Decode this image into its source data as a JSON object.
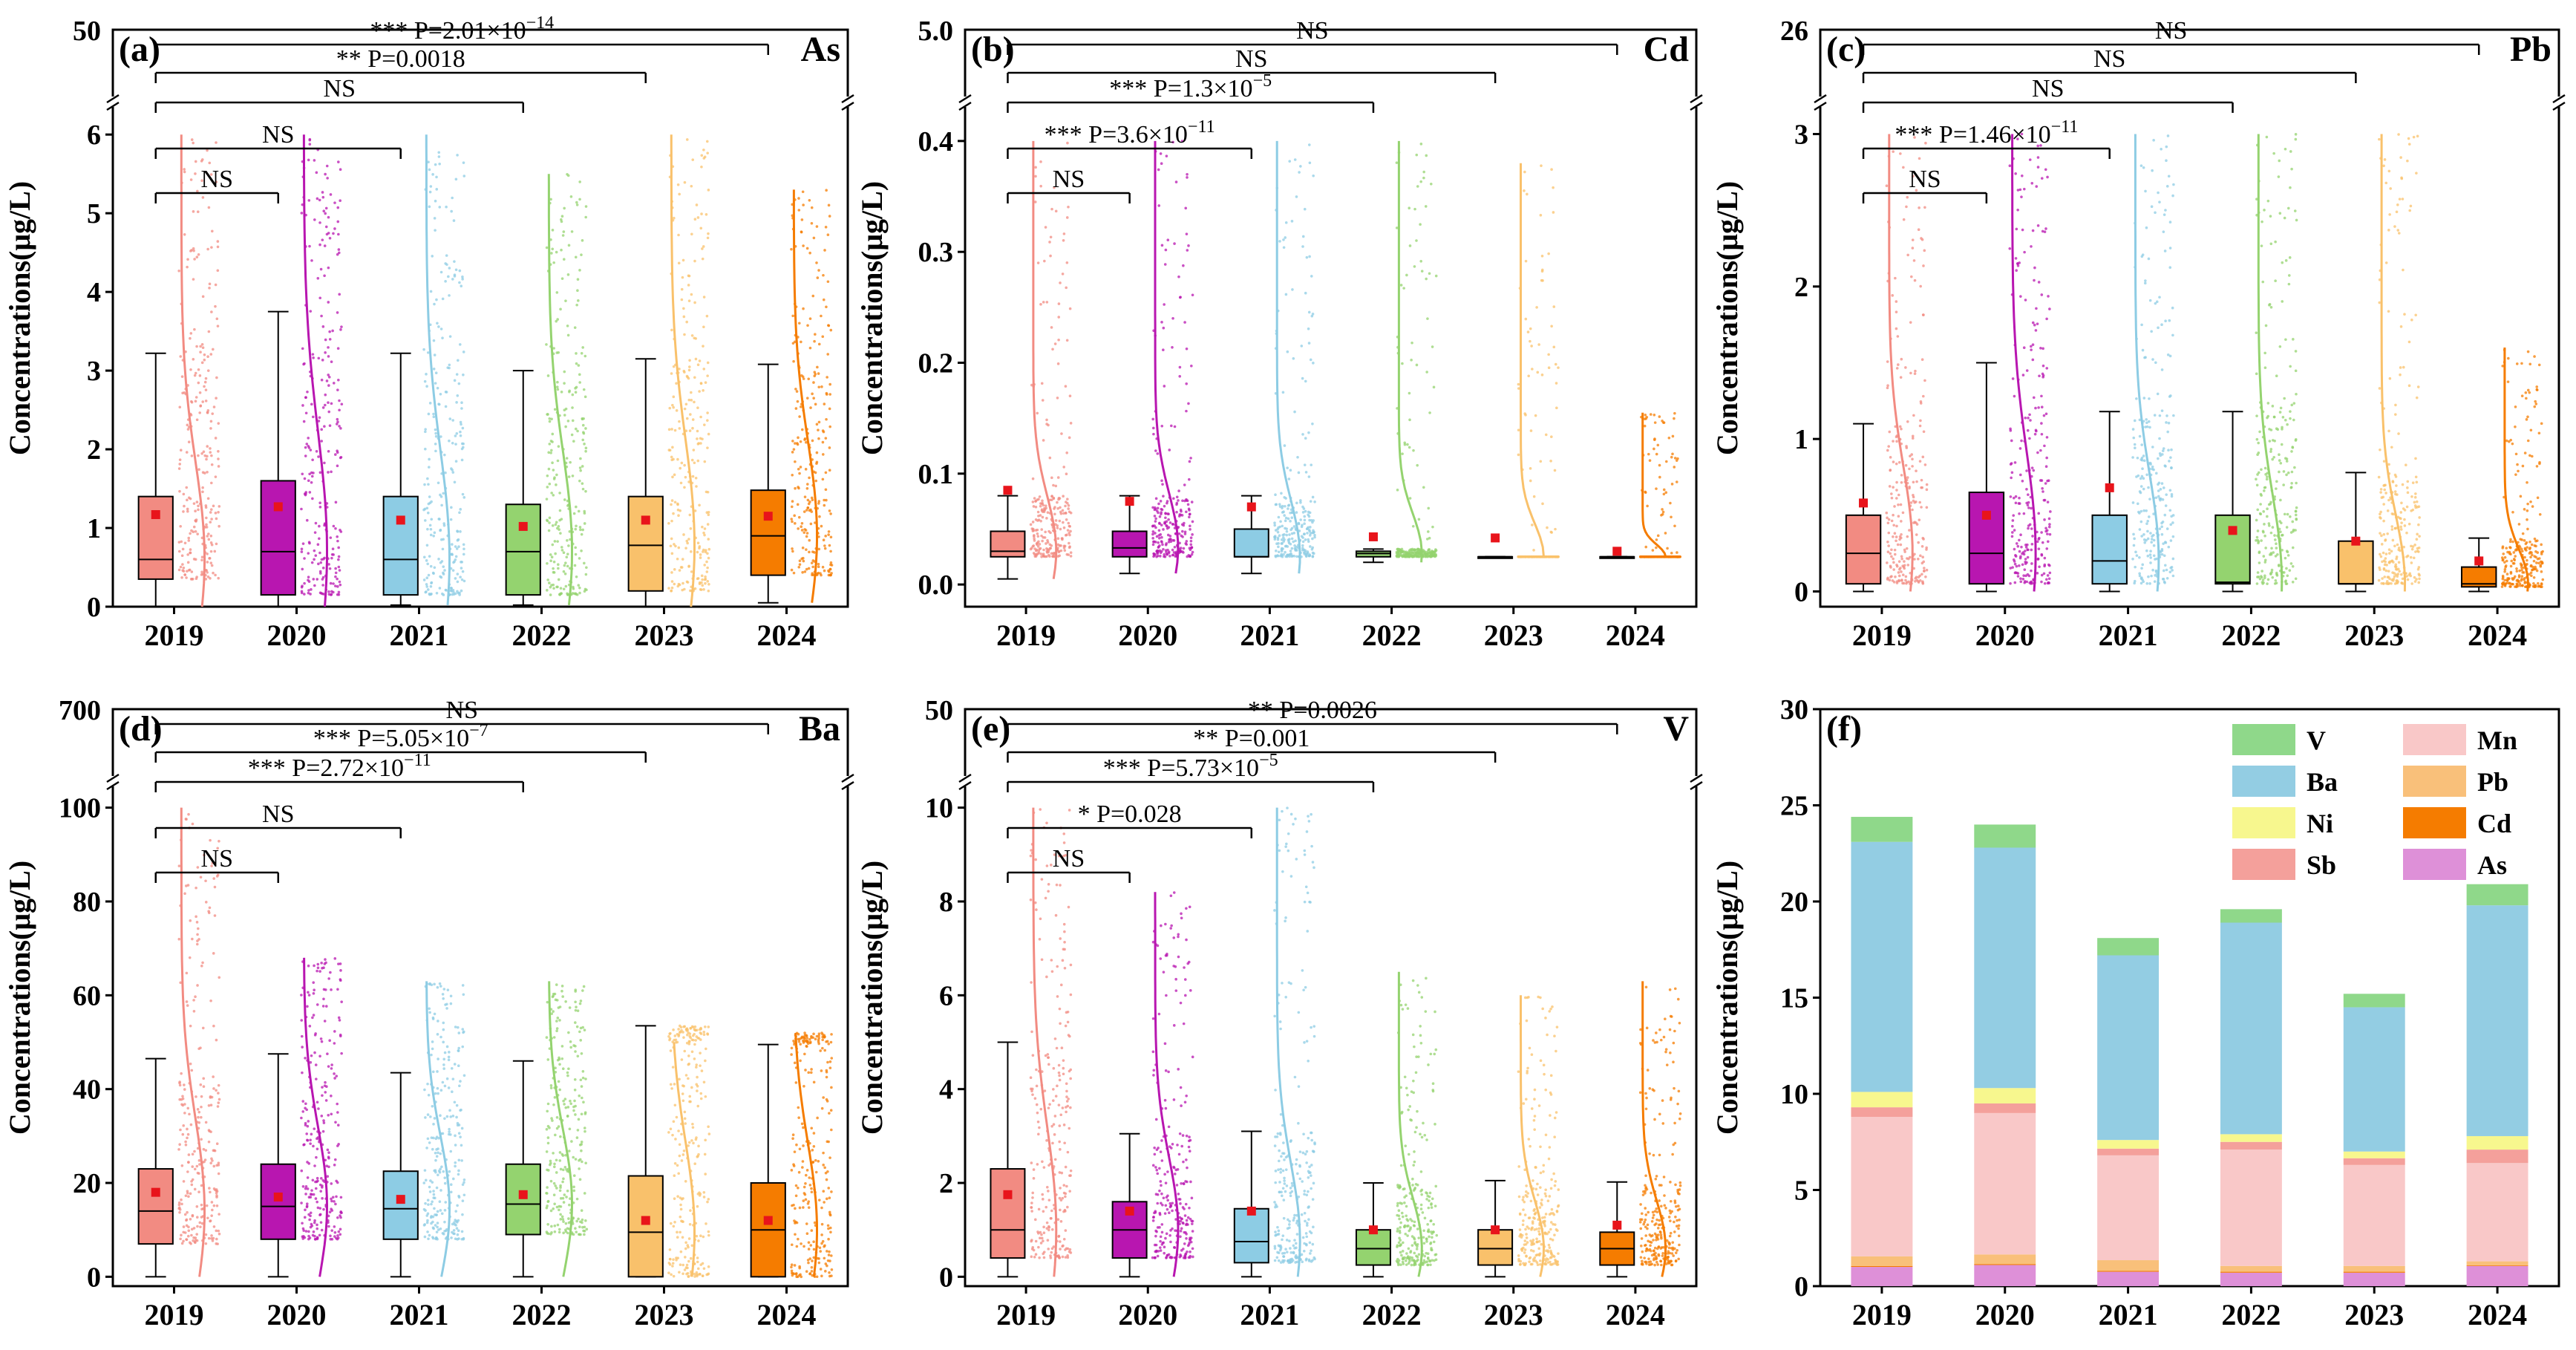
{
  "chart_data": [
    {
      "id": "a",
      "type": "box",
      "panel_label": "(a)",
      "element": "As",
      "ylabel": "Concentrations(μg/L)",
      "categories": [
        "2019",
        "2020",
        "2021",
        "2022",
        "2023",
        "2024"
      ],
      "colors": [
        "#F28B82",
        "#B816B0",
        "#8DCCE4",
        "#94D36F",
        "#F9C16B",
        "#F57C00"
      ],
      "ylim": [
        0,
        6.2
      ],
      "y_ticks": [
        0,
        1,
        2,
        3,
        4,
        5,
        6
      ],
      "y_top_label": "50",
      "boxes": [
        {
          "q1": 0.35,
          "median": 0.6,
          "q3": 1.4,
          "mean": 1.17,
          "wl": 0.0,
          "wh": 3.22,
          "tail": 6.0
        },
        {
          "q1": 0.15,
          "median": 0.7,
          "q3": 1.6,
          "mean": 1.27,
          "wl": 0.0,
          "wh": 3.75,
          "tail": 6.0
        },
        {
          "q1": 0.15,
          "median": 0.6,
          "q3": 1.4,
          "mean": 1.1,
          "wl": 0.02,
          "wh": 3.22,
          "tail": 6.0
        },
        {
          "q1": 0.15,
          "median": 0.7,
          "q3": 1.3,
          "mean": 1.02,
          "wl": 0.02,
          "wh": 3.0,
          "tail": 5.5
        },
        {
          "q1": 0.2,
          "median": 0.78,
          "q3": 1.4,
          "mean": 1.1,
          "wl": 0.0,
          "wh": 3.15,
          "tail": 6.0
        },
        {
          "q1": 0.4,
          "median": 0.9,
          "q3": 1.48,
          "mean": 1.15,
          "wl": 0.05,
          "wh": 3.08,
          "tail": 5.3
        }
      ],
      "comparisons": [
        {
          "to": "2024",
          "label": "*** P=2.01×10",
          "exp": "−14"
        },
        {
          "to": "2023",
          "label": "** P=0.0018",
          "exp": ""
        },
        {
          "to": "2022",
          "label": "NS",
          "exp": ""
        },
        {
          "to": "2021",
          "label": "NS",
          "exp": ""
        },
        {
          "to": "2020",
          "label": "NS",
          "exp": ""
        }
      ]
    },
    {
      "id": "b",
      "type": "box",
      "panel_label": "(b)",
      "element": "Cd",
      "ylabel": "Concentrations(μg/L)",
      "categories": [
        "2019",
        "2020",
        "2021",
        "2022",
        "2023",
        "2024"
      ],
      "colors": [
        "#F28B82",
        "#B816B0",
        "#8DCCE4",
        "#94D36F",
        "#F9C16B",
        "#F57C00"
      ],
      "ylim": [
        -0.02,
        0.42
      ],
      "y_ticks": [
        0.0,
        0.1,
        0.2,
        0.3,
        0.4
      ],
      "y_top_label": "5.0",
      "boxes": [
        {
          "q1": 0.025,
          "median": 0.03,
          "q3": 0.048,
          "mean": 0.085,
          "wl": 0.005,
          "wh": 0.08,
          "tail": 0.4
        },
        {
          "q1": 0.025,
          "median": 0.033,
          "q3": 0.048,
          "mean": 0.075,
          "wl": 0.01,
          "wh": 0.08,
          "tail": 0.4
        },
        {
          "q1": 0.025,
          "median": 0.025,
          "q3": 0.05,
          "mean": 0.07,
          "wl": 0.01,
          "wh": 0.08,
          "tail": 0.4
        },
        {
          "q1": 0.025,
          "median": 0.028,
          "q3": 0.03,
          "mean": 0.043,
          "wl": 0.02,
          "wh": 0.032,
          "tail": 0.4
        },
        {
          "q1": 0.025,
          "median": 0.025,
          "q3": 0.025,
          "mean": 0.042,
          "wl": 0.025,
          "wh": 0.025,
          "tail": 0.38
        },
        {
          "q1": 0.025,
          "median": 0.025,
          "q3": 0.025,
          "mean": 0.03,
          "wl": 0.025,
          "wh": 0.025,
          "tail": 0.155
        }
      ],
      "comparisons": [
        {
          "to": "2024",
          "label": "NS",
          "exp": ""
        },
        {
          "to": "2023",
          "label": "NS",
          "exp": ""
        },
        {
          "to": "2022",
          "label": "*** P=1.3×10",
          "exp": "−5"
        },
        {
          "to": "2021",
          "label": "*** P=3.6×10",
          "exp": "−11"
        },
        {
          "to": "2020",
          "label": "NS",
          "exp": ""
        }
      ]
    },
    {
      "id": "c",
      "type": "box",
      "panel_label": "(c)",
      "element": "Pb",
      "ylabel": "Concentrations(μg/L)",
      "categories": [
        "2019",
        "2020",
        "2021",
        "2022",
        "2023",
        "2024"
      ],
      "colors": [
        "#F28B82",
        "#B816B0",
        "#8DCCE4",
        "#94D36F",
        "#F9C16B",
        "#F57C00"
      ],
      "ylim": [
        -0.1,
        3.1
      ],
      "y_ticks": [
        0,
        1,
        2,
        3
      ],
      "y_top_label": "26",
      "boxes": [
        {
          "q1": 0.05,
          "median": 0.25,
          "q3": 0.5,
          "mean": 0.58,
          "wl": 0.0,
          "wh": 1.1,
          "tail": 3.0
        },
        {
          "q1": 0.05,
          "median": 0.25,
          "q3": 0.65,
          "mean": 0.5,
          "wl": 0.0,
          "wh": 1.5,
          "tail": 3.0
        },
        {
          "q1": 0.05,
          "median": 0.2,
          "q3": 0.5,
          "mean": 0.68,
          "wl": 0.0,
          "wh": 1.18,
          "tail": 3.0
        },
        {
          "q1": 0.05,
          "median": 0.06,
          "q3": 0.5,
          "mean": 0.4,
          "wl": 0.0,
          "wh": 1.18,
          "tail": 3.0
        },
        {
          "q1": 0.05,
          "median": 0.05,
          "q3": 0.33,
          "mean": 0.33,
          "wl": 0.0,
          "wh": 0.78,
          "tail": 3.0
        },
        {
          "q1": 0.03,
          "median": 0.05,
          "q3": 0.16,
          "mean": 0.2,
          "wl": 0.0,
          "wh": 0.35,
          "tail": 1.6
        }
      ],
      "comparisons": [
        {
          "to": "2024",
          "label": "NS",
          "exp": ""
        },
        {
          "to": "2023",
          "label": "NS",
          "exp": ""
        },
        {
          "to": "2022",
          "label": "NS",
          "exp": ""
        },
        {
          "to": "2021",
          "label": "*** P=1.46×10",
          "exp": "−11"
        },
        {
          "to": "2020",
          "label": "NS",
          "exp": ""
        }
      ]
    },
    {
      "id": "d",
      "type": "box",
      "panel_label": "(d)",
      "element": "Ba",
      "ylabel": "Concentrations(μg/L)",
      "categories": [
        "2019",
        "2020",
        "2021",
        "2022",
        "2023",
        "2024"
      ],
      "colors": [
        "#F28B82",
        "#B816B0",
        "#8DCCE4",
        "#94D36F",
        "#F9C16B",
        "#F57C00"
      ],
      "ylim": [
        -2,
        102
      ],
      "y_ticks": [
        0,
        20,
        40,
        60,
        80,
        100
      ],
      "y_top_label": "700",
      "boxes": [
        {
          "q1": 7,
          "median": 14,
          "q3": 23,
          "mean": 18,
          "wl": 0,
          "wh": 46.5,
          "tail": 100
        },
        {
          "q1": 8,
          "median": 15,
          "q3": 24,
          "mean": 17,
          "wl": 0,
          "wh": 47.5,
          "tail": 68
        },
        {
          "q1": 8,
          "median": 14.5,
          "q3": 22.5,
          "mean": 16.5,
          "wl": 0,
          "wh": 43.5,
          "tail": 63
        },
        {
          "q1": 9,
          "median": 15.5,
          "q3": 24,
          "mean": 17.5,
          "wl": 0,
          "wh": 46,
          "tail": 63
        },
        {
          "q1": 0,
          "median": 9.5,
          "q3": 21.5,
          "mean": 12,
          "wl": 0,
          "wh": 53.5,
          "tail": 50
        },
        {
          "q1": 0,
          "median": 10,
          "q3": 20,
          "mean": 12,
          "wl": 0,
          "wh": 49.5,
          "tail": 52
        }
      ],
      "comparisons": [
        {
          "to": "2024",
          "label": "NS",
          "exp": ""
        },
        {
          "to": "2023",
          "label": "*** P=5.05×10",
          "exp": "−7"
        },
        {
          "to": "2022",
          "label": "*** P=2.72×10",
          "exp": "−11"
        },
        {
          "to": "2021",
          "label": "NS",
          "exp": ""
        },
        {
          "to": "2020",
          "label": "NS",
          "exp": ""
        }
      ]
    },
    {
      "id": "e",
      "type": "box",
      "panel_label": "(e)",
      "element": "V",
      "ylabel": "Concentrations(μg/L)",
      "categories": [
        "2019",
        "2020",
        "2021",
        "2022",
        "2023",
        "2024"
      ],
      "colors": [
        "#F28B82",
        "#B816B0",
        "#8DCCE4",
        "#94D36F",
        "#F9C16B",
        "#F57C00"
      ],
      "ylim": [
        -0.2,
        10.2
      ],
      "y_ticks": [
        0,
        2,
        4,
        6,
        8,
        10
      ],
      "y_top_label": "50",
      "boxes": [
        {
          "q1": 0.4,
          "median": 1.0,
          "q3": 2.3,
          "mean": 1.75,
          "wl": 0.0,
          "wh": 5.0,
          "tail": 10.0
        },
        {
          "q1": 0.4,
          "median": 1.0,
          "q3": 1.6,
          "mean": 1.4,
          "wl": 0.0,
          "wh": 3.05,
          "tail": 8.2
        },
        {
          "q1": 0.3,
          "median": 0.75,
          "q3": 1.45,
          "mean": 1.4,
          "wl": 0.0,
          "wh": 3.1,
          "tail": 10.0
        },
        {
          "q1": 0.25,
          "median": 0.6,
          "q3": 1.0,
          "mean": 1.0,
          "wl": 0.0,
          "wh": 2.0,
          "tail": 6.5
        },
        {
          "q1": 0.25,
          "median": 0.6,
          "q3": 1.0,
          "mean": 1.0,
          "wl": 0.0,
          "wh": 2.05,
          "tail": 6.0
        },
        {
          "q1": 0.25,
          "median": 0.6,
          "q3": 0.95,
          "mean": 1.1,
          "wl": 0.0,
          "wh": 2.02,
          "tail": 6.3
        }
      ],
      "comparisons": [
        {
          "to": "2024",
          "label": "** P=0.0026",
          "exp": ""
        },
        {
          "to": "2023",
          "label": "** P=0.001",
          "exp": ""
        },
        {
          "to": "2022",
          "label": "*** P=5.73×10",
          "exp": "−5"
        },
        {
          "to": "2021",
          "label": "* P=0.028",
          "exp": ""
        },
        {
          "to": "2020",
          "label": "NS",
          "exp": ""
        }
      ]
    },
    {
      "id": "f",
      "type": "stacked-bar",
      "panel_label": "(f)",
      "ylabel": "Concentrations(μg/L)",
      "categories": [
        "2019",
        "2020",
        "2021",
        "2022",
        "2023",
        "2024"
      ],
      "ylim": [
        0,
        30
      ],
      "y_ticks": [
        0,
        5,
        10,
        15,
        20,
        25,
        30
      ],
      "legend": [
        {
          "name": "V",
          "color": "#8FD88A"
        },
        {
          "name": "Mn",
          "color": "#F9C8C8"
        },
        {
          "name": "Ba",
          "color": "#93CDE3"
        },
        {
          "name": "Pb",
          "color": "#F9C07A"
        },
        {
          "name": "Ni",
          "color": "#F7F78E"
        },
        {
          "name": "Cd",
          "color": "#F57C00"
        },
        {
          "name": "Sb",
          "color": "#F4A09B"
        },
        {
          "name": "As",
          "color": "#DE90D8"
        }
      ],
      "series": [
        {
          "name": "As",
          "color": "#DE90D8",
          "values": [
            1.0,
            1.1,
            0.75,
            0.7,
            0.7,
            1.05
          ]
        },
        {
          "name": "Cd",
          "color": "#F57C00",
          "values": [
            0.05,
            0.05,
            0.05,
            0.05,
            0.05,
            0.04
          ]
        },
        {
          "name": "Pb",
          "color": "#F9C07A",
          "values": [
            0.5,
            0.5,
            0.55,
            0.3,
            0.3,
            0.2
          ]
        },
        {
          "name": "Mn",
          "color": "#F9C8C8",
          "values": [
            7.25,
            7.35,
            5.45,
            6.05,
            5.25,
            5.11
          ]
        },
        {
          "name": "Sb",
          "color": "#F4A09B",
          "values": [
            0.5,
            0.5,
            0.35,
            0.4,
            0.35,
            0.7
          ]
        },
        {
          "name": "Ni",
          "color": "#F7F78E",
          "values": [
            0.8,
            0.8,
            0.45,
            0.4,
            0.35,
            0.7
          ]
        },
        {
          "name": "Ba",
          "color": "#93CDE3",
          "values": [
            13.0,
            12.5,
            9.6,
            11.0,
            7.5,
            12.0
          ]
        },
        {
          "name": "V",
          "color": "#8FD88A",
          "values": [
            1.3,
            1.2,
            0.9,
            0.7,
            0.7,
            1.1
          ]
        }
      ]
    }
  ]
}
